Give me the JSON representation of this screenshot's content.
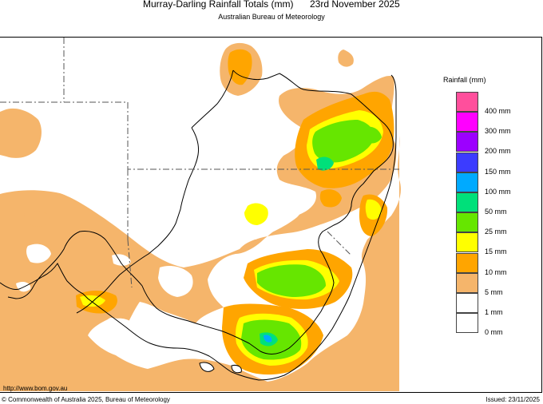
{
  "header": {
    "title": "Murray-Darling Rainfall Totals (mm)",
    "date": "23rd November 2025",
    "subtitle": "Australian Bureau of Meteorology"
  },
  "footer": {
    "url": "http://www.bom.gov.au",
    "copyright": "© Commonwealth of Australia 2025, Bureau of Meteorology",
    "issued": "Issued: 23/11/2025"
  },
  "legend": {
    "title": "Rainfall (mm)",
    "items": [
      {
        "label": "400 mm",
        "color": "#ff4f9c"
      },
      {
        "label": "300 mm",
        "color": "#ff00ff"
      },
      {
        "label": "200 mm",
        "color": "#9c00ff"
      },
      {
        "label": "150 mm",
        "color": "#3c3cff"
      },
      {
        "label": "100 mm",
        "color": "#00aaff"
      },
      {
        "label": "50 mm",
        "color": "#00e07a"
      },
      {
        "label": "25 mm",
        "color": "#66e600"
      },
      {
        "label": "15 mm",
        "color": "#ffff00"
      },
      {
        "label": "10 mm",
        "color": "#ffa500"
      },
      {
        "label": "5 mm",
        "color": "#f5b56b"
      },
      {
        "label": "1 mm",
        "color": "#ffffff"
      },
      {
        "label": "0 mm",
        "color": "#ffffff"
      }
    ]
  }
}
